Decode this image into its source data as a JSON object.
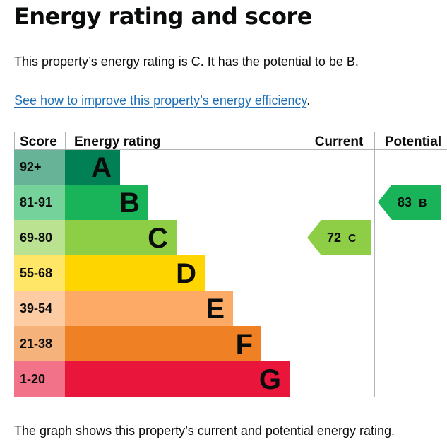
{
  "page": {
    "title": "Energy rating and score",
    "summary": "This property’s energy rating is C. It has the potential to be B.",
    "improve_link": "See how to improve this property’s energy efficiency",
    "improve_suffix": ".",
    "footer": "The graph shows this property’s current and potential energy rating."
  },
  "chart_data": {
    "type": "bar",
    "columns": {
      "score": "Score",
      "rating": "Energy rating",
      "current": "Current",
      "potential": "Potential"
    },
    "bands": [
      {
        "range": "92+",
        "letter": "A",
        "color": "#008054",
        "score_color": "#66b398"
      },
      {
        "range": "81-91",
        "letter": "B",
        "color": "#19b459",
        "score_color": "#75d29b"
      },
      {
        "range": "69-80",
        "letter": "C",
        "color": "#8dce46",
        "score_color": "#bbe290"
      },
      {
        "range": "55-68",
        "letter": "D",
        "color": "#ffd500",
        "score_color": "#ffe666"
      },
      {
        "range": "39-54",
        "letter": "E",
        "color": "#fcaa65",
        "score_color": "#fdcca3"
      },
      {
        "range": "21-38",
        "letter": "F",
        "color": "#ef8023",
        "score_color": "#f5b37b"
      },
      {
        "range": "1-20",
        "letter": "G",
        "color": "#e9153b",
        "score_color": "#f27389"
      }
    ],
    "current": {
      "value": 72,
      "letter": "C",
      "label": "72 C",
      "color": "#8dce46"
    },
    "potential": {
      "value": 83,
      "letter": "B",
      "label": "83 B",
      "color": "#19b459"
    },
    "grid_color": "#b1b4b6"
  }
}
